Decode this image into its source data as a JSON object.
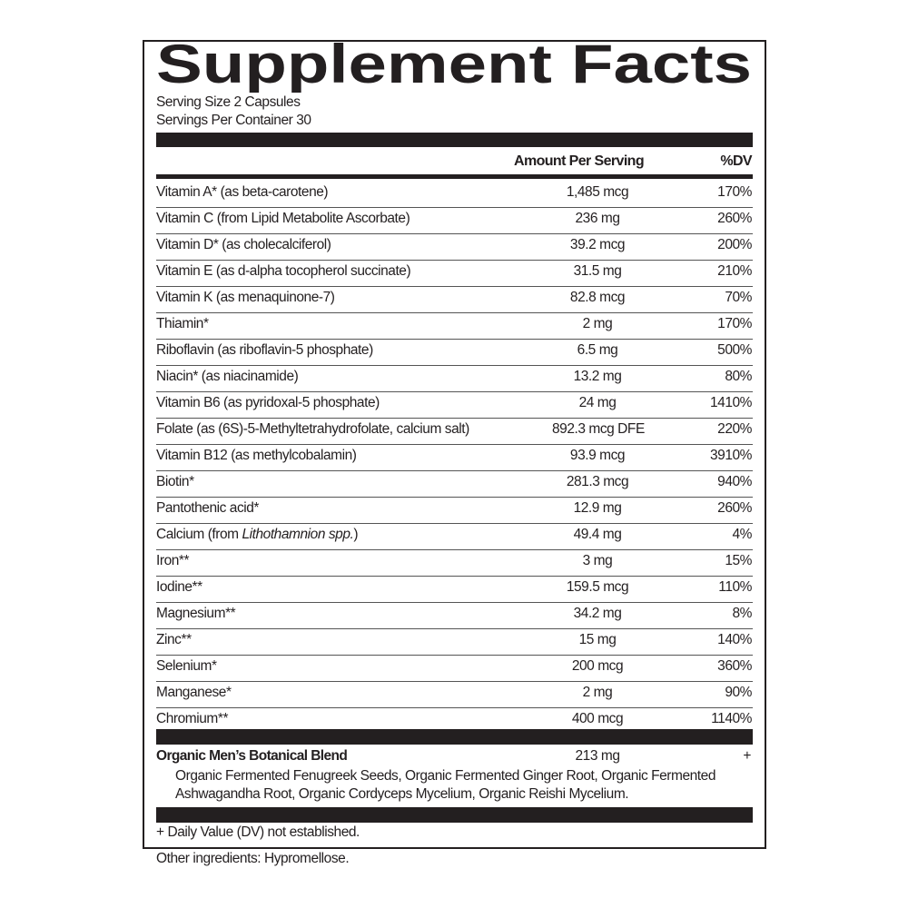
{
  "title": "Supplement Facts",
  "serving_size": "Serving Size 2 Capsules",
  "servings_per_container": "Servings Per Container 30",
  "header": {
    "amount": "Amount Per Serving",
    "dv": "%DV"
  },
  "nutrients": [
    {
      "name": "Vitamin A* (as beta-carotene)",
      "amount": "1,485 mcg",
      "dv": "170%"
    },
    {
      "name": "Vitamin C (from Lipid Metabolite Ascorbate)",
      "amount": "236 mg",
      "dv": "260%"
    },
    {
      "name": "Vitamin D* (as cholecalciferol)",
      "amount": "39.2 mcg",
      "dv": "200%"
    },
    {
      "name": "Vitamin E (as d-alpha tocopherol succinate)",
      "amount": "31.5 mg",
      "dv": "210%"
    },
    {
      "name": "Vitamin K (as menaquinone-7)",
      "amount": "82.8 mcg",
      "dv": "70%"
    },
    {
      "name": "Thiamin*",
      "amount": "2 mg",
      "dv": "170%"
    },
    {
      "name": "Riboflavin (as riboflavin-5 phosphate)",
      "amount": "6.5 mg",
      "dv": "500%"
    },
    {
      "name": "Niacin* (as niacinamide)",
      "amount": "13.2 mg",
      "dv": "80%"
    },
    {
      "name": "Vitamin B6 (as pyridoxal-5 phosphate)",
      "amount": "24 mg",
      "dv": "1410%"
    },
    {
      "name": "Folate (as (6S)-5-Methyltetrahydrofolate, calcium salt)",
      "amount": "892.3 mcg DFE",
      "dv": "220%"
    },
    {
      "name": "Vitamin B12 (as methylcobalamin)",
      "amount": "93.9 mcg",
      "dv": "3910%"
    },
    {
      "name": "Biotin*",
      "amount": "281.3 mcg",
      "dv": "940%"
    },
    {
      "name": "Pantothenic acid*",
      "amount": "12.9 mg",
      "dv": "260%"
    },
    {
      "name": "Calcium (from ",
      "name_italic": "Lithothamnion spp.",
      "name_suffix": ")",
      "amount": "49.4 mg",
      "dv": "4%"
    },
    {
      "name": "Iron**",
      "amount": "3 mg",
      "dv": "15%"
    },
    {
      "name": "Iodine**",
      "amount": "159.5 mcg",
      "dv": "110%"
    },
    {
      "name": "Magnesium**",
      "amount": "34.2 mg",
      "dv": "8%"
    },
    {
      "name": "Zinc**",
      "amount": "15 mg",
      "dv": "140%"
    },
    {
      "name": "Selenium*",
      "amount": "200 mcg",
      "dv": "360%"
    },
    {
      "name": "Manganese*",
      "amount": "2 mg",
      "dv": "90%"
    },
    {
      "name": "Chromium**",
      "amount": "400 mcg",
      "dv": "1140%"
    }
  ],
  "blend": {
    "name": "Organic Men’s Botanical Blend",
    "amount": "213 mg",
    "dv": "+",
    "line1": "Organic Fermented Fenugreek Seeds, Organic Fermented Ginger Root, Organic Fermented",
    "line2": "Ashwagandha Root, Organic Cordyceps Mycelium, Organic Reishi Mycelium."
  },
  "footnote": "+ Daily Value (DV) not established.",
  "other_ingredients": "Other ingredients: Hypromellose."
}
